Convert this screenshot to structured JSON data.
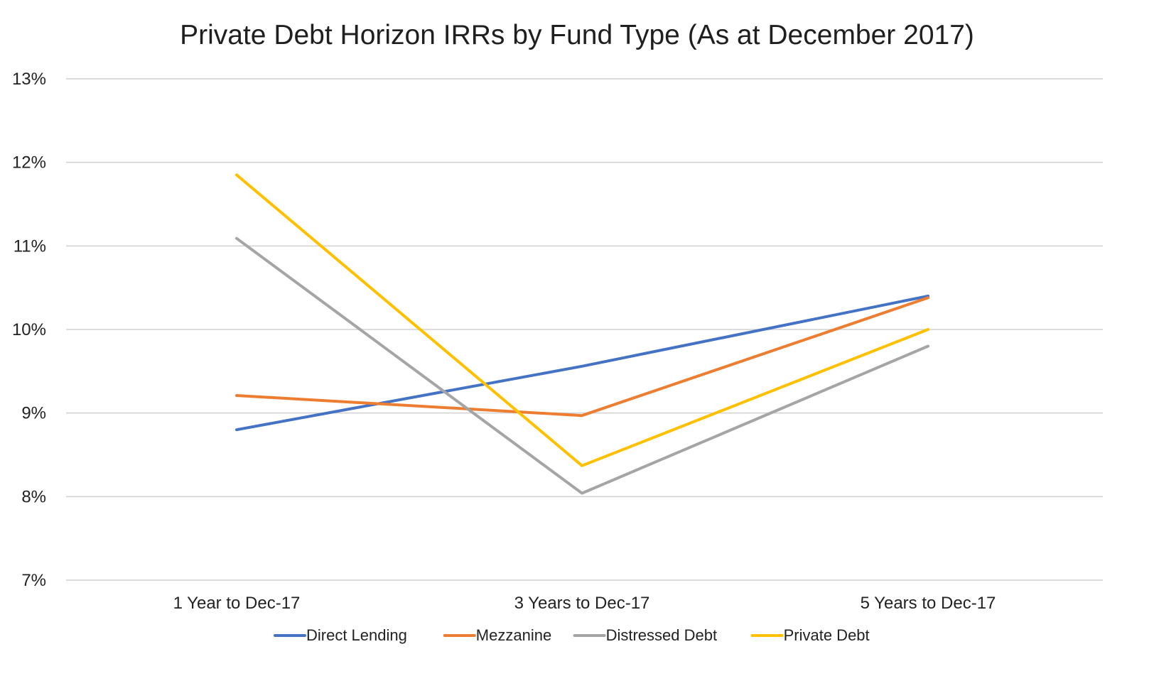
{
  "chart_data": {
    "type": "line",
    "title": "Private Debt Horizon IRRs by Fund Type (As at December 2017)",
    "xlabel": "",
    "ylabel": "",
    "categories": [
      "1 Year to Dec-17",
      "3 Years to Dec-17",
      "5 Years to Dec-17"
    ],
    "yticks": [
      "7%",
      "8%",
      "9%",
      "10%",
      "11%",
      "12%",
      "13%"
    ],
    "ylim": [
      7,
      13
    ],
    "grid": true,
    "legend_position": "bottom",
    "series": [
      {
        "name": "Direct Lending",
        "color": "#4472c4",
        "values": [
          8.8,
          9.56,
          10.4
        ]
      },
      {
        "name": "Mezzanine",
        "color": "#ed7d31",
        "values": [
          9.21,
          8.97,
          10.38
        ]
      },
      {
        "name": "Distressed Debt",
        "color": "#a5a5a5",
        "values": [
          11.09,
          8.04,
          9.8
        ]
      },
      {
        "name": "Private Debt",
        "color": "#ffc000",
        "values": [
          11.85,
          8.37,
          10.0
        ]
      }
    ]
  }
}
